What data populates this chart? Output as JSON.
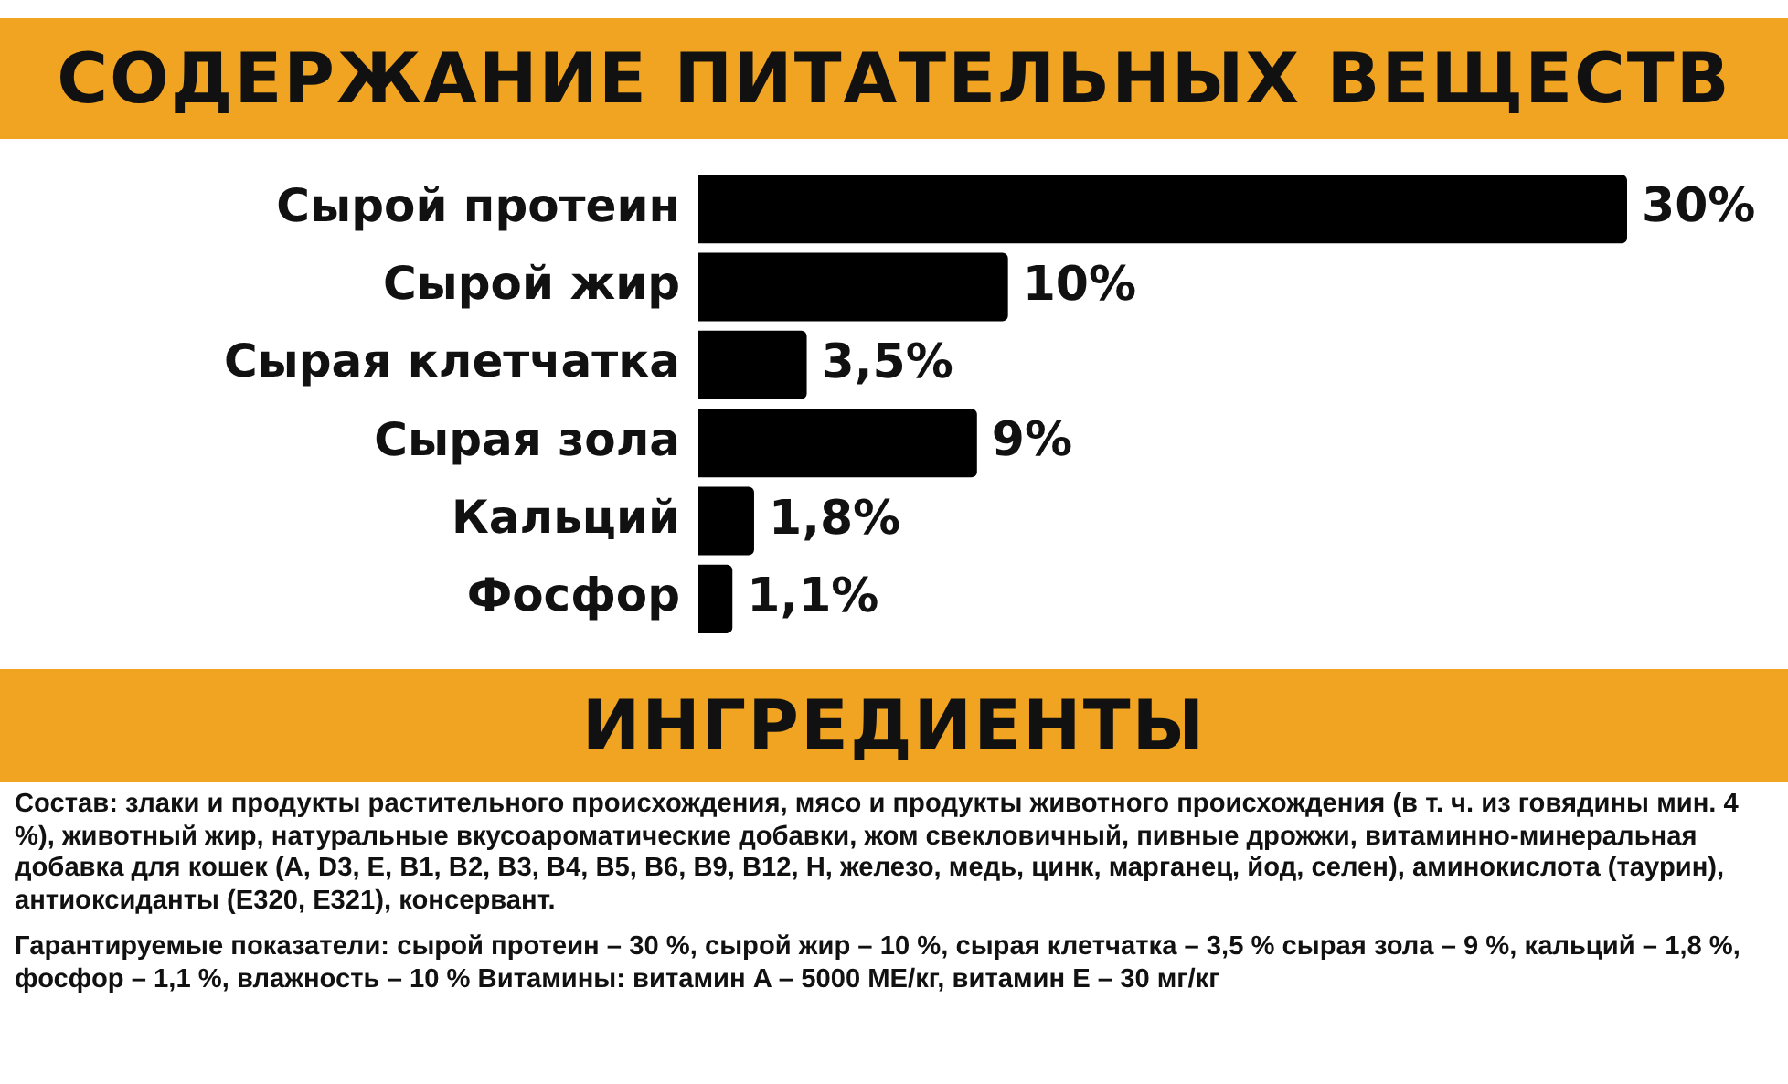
{
  "chart_data": {
    "type": "bar",
    "orientation": "horizontal",
    "title": "СОДЕРЖАНИЕ ПИТАТЕЛЬНЫХ ВЕЩЕСТВ",
    "categories": [
      "Сырой протеин",
      "Сырой жир",
      "Сырая клетчатка",
      "Сырая зола",
      "Кальций",
      "Фосфор"
    ],
    "values": [
      30,
      10,
      3.5,
      9,
      1.8,
      1.1
    ],
    "value_labels": [
      "30%",
      "10%",
      "3,5%",
      "9%",
      "1,8%",
      "1,1%"
    ],
    "color": "#000000",
    "xlim": [
      0,
      30
    ],
    "tick_labels": "y",
    "annotations": [
      "ИНГРЕДИЕНТЫ",
      "Состав: злаки и продукты растительного происхождения, мясо и продукты животного происхождения (в т. ч. из говядины мин. 4 %), животный жир, натуральные вкусоароматические добавки, жом свекловичный, пивные дрожжи, витаминно-минеральная добавка для кошек (A, D3, E, B1, B2, B3, B4, B5, B6, B9, B12, H, железо, медь, цинк, марганец, йод, селен), аминокислота (таурин), антиоксиданты (E320, E321), консервант.",
      "Гарантируемые показатели: сырой протеин – 30 %, сырой жир – 10 %, сырая клетчатка – 3,5 % сырая зола – 9 %, кальций – 1,8 %, фосфор – 1,1 %, влажность – 10 % Витамины: витамин A – 5000 МЕ/кг, витамин E – 30 мг/кг"
    ]
  }
}
